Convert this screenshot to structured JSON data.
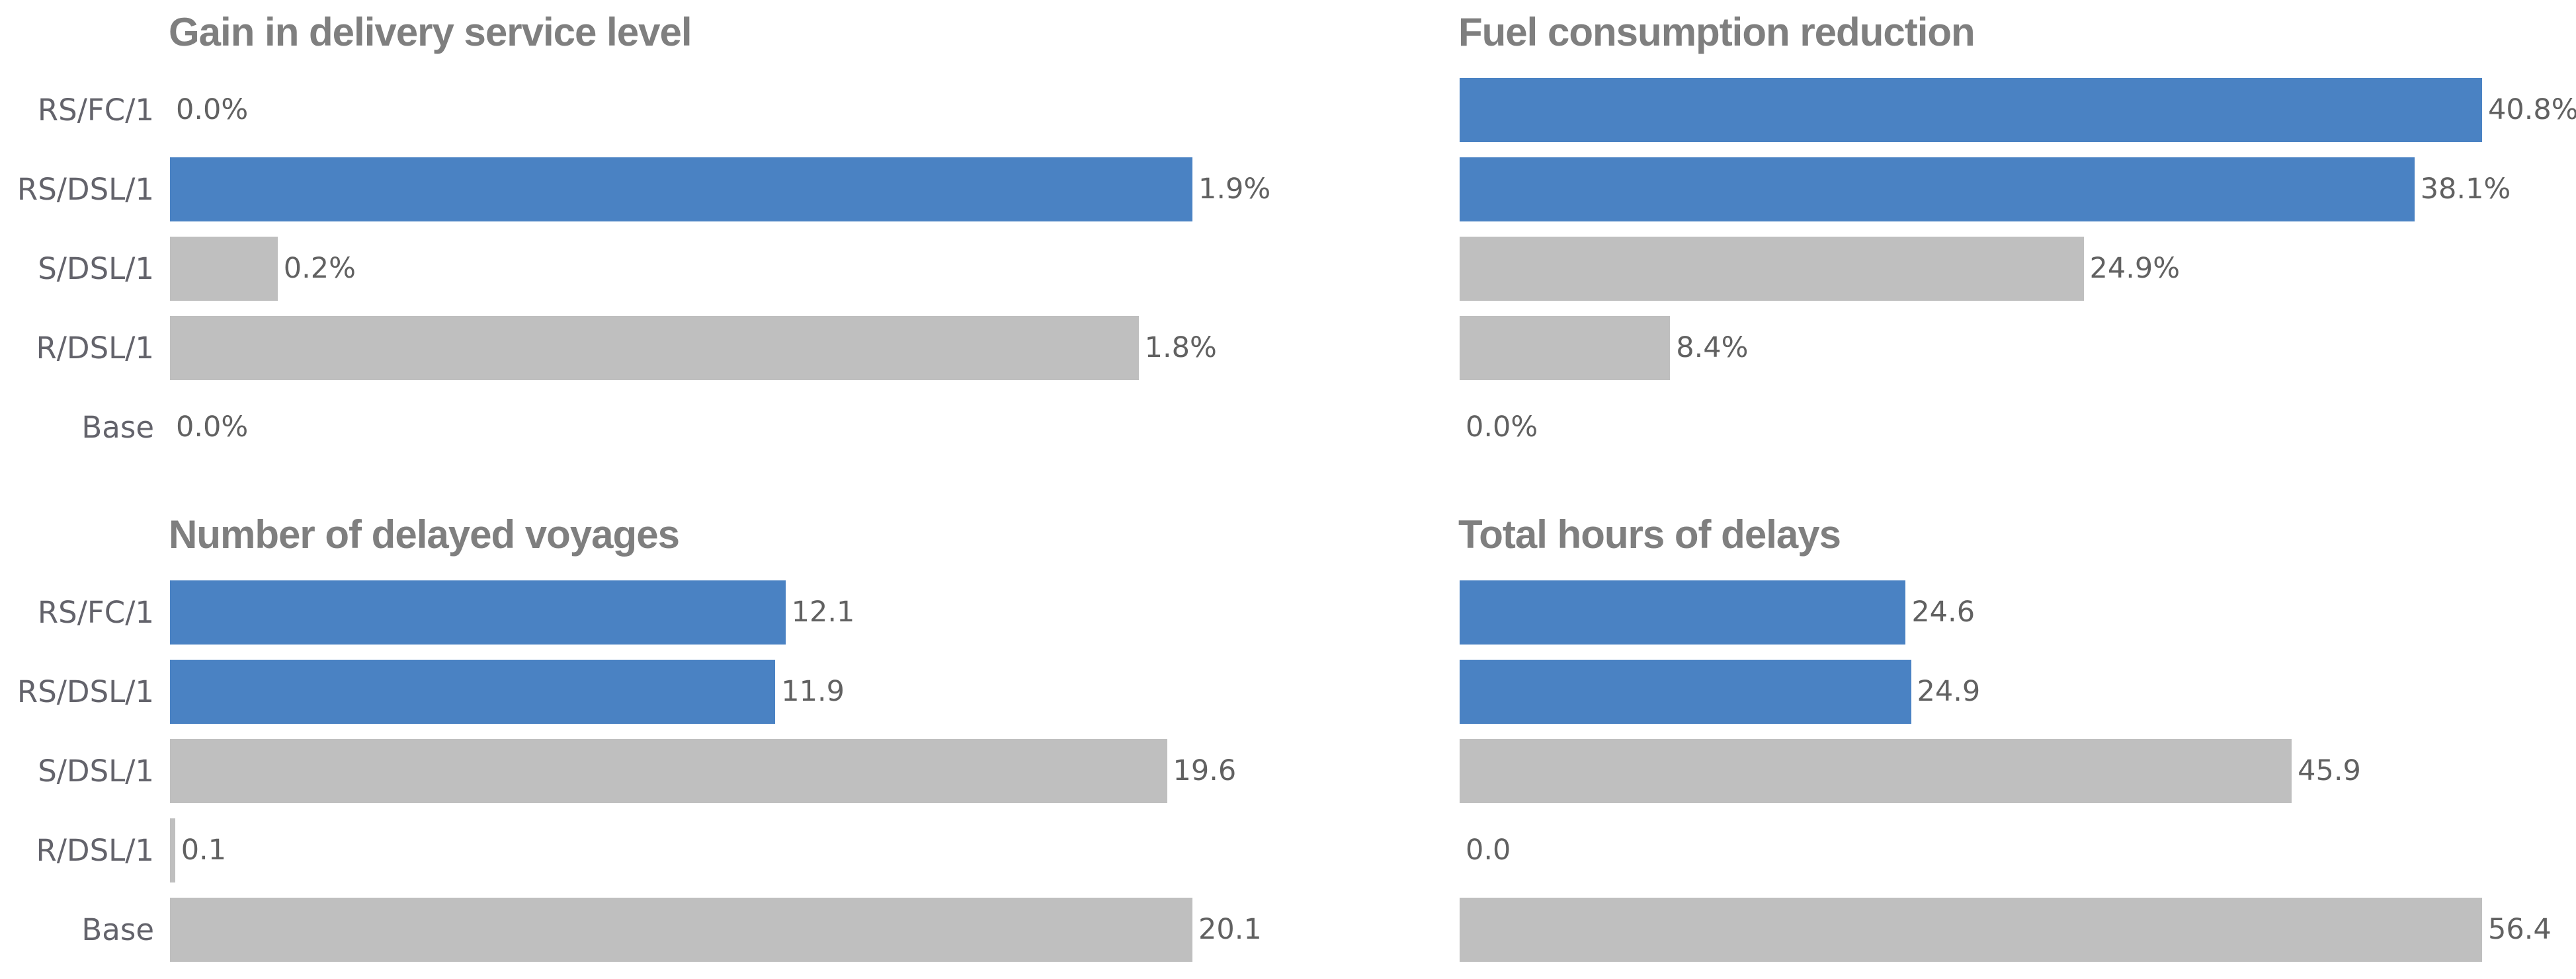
{
  "style": {
    "background": "#ffffff",
    "highlight_bar_color": "#4a82c3",
    "neutral_bar_color": "#bfbfbf",
    "title_text_color": "#7f7f7f",
    "category_text_color": "#63636b",
    "value_text_color": "#616161"
  },
  "chart_data": [
    {
      "type": "bar",
      "orientation": "horizontal",
      "title": "Gain in delivery service level",
      "categories": [
        "RS/FC/1",
        "RS/DSL/1",
        "S/DSL/1",
        "R/DSL/1",
        "Base"
      ],
      "values": [
        0.0,
        1.9,
        0.2,
        1.8,
        0.0
      ],
      "labels": [
        "0.0%",
        "1.9%",
        "0.2%",
        "1.8%",
        "0.0%"
      ],
      "colors": [
        "#4a82c3",
        "#4a82c3",
        "#bfbfbf",
        "#bfbfbf",
        "#bfbfbf"
      ],
      "xmax": 1.9,
      "unit": "%",
      "show_category_axis": true,
      "grid": false,
      "legend": false
    },
    {
      "type": "bar",
      "orientation": "horizontal",
      "title": "Fuel consumption reduction",
      "categories": [
        "RS/FC/1",
        "RS/DSL/1",
        "S/DSL/1",
        "R/DSL/1",
        "Base"
      ],
      "values": [
        40.8,
        38.1,
        24.9,
        8.4,
        0.0
      ],
      "labels": [
        "40.8%",
        "38.1%",
        "24.9%",
        "8.4%",
        "0.0%"
      ],
      "colors": [
        "#4a82c3",
        "#4a82c3",
        "#bfbfbf",
        "#bfbfbf",
        "#bfbfbf"
      ],
      "xmax": 40.8,
      "unit": "%",
      "show_category_axis": false,
      "grid": false,
      "legend": false
    },
    {
      "type": "bar",
      "orientation": "horizontal",
      "title": "Number of delayed voyages",
      "categories": [
        "RS/FC/1",
        "RS/DSL/1",
        "S/DSL/1",
        "R/DSL/1",
        "Base"
      ],
      "values": [
        12.1,
        11.9,
        19.6,
        0.1,
        20.1
      ],
      "labels": [
        "12.1",
        "11.9",
        "19.6",
        "0.1",
        "20.1"
      ],
      "colors": [
        "#4a82c3",
        "#4a82c3",
        "#bfbfbf",
        "#bfbfbf",
        "#bfbfbf"
      ],
      "xmax": 20.1,
      "unit": "",
      "show_category_axis": true,
      "grid": false,
      "legend": false
    },
    {
      "type": "bar",
      "orientation": "horizontal",
      "title": "Total hours of delays",
      "categories": [
        "RS/FC/1",
        "RS/DSL/1",
        "S/DSL/1",
        "R/DSL/1",
        "Base"
      ],
      "values": [
        24.6,
        24.9,
        45.9,
        0.0,
        56.4
      ],
      "labels": [
        "24.6",
        "24.9",
        "45.9",
        "0.0",
        "56.4"
      ],
      "colors": [
        "#4a82c3",
        "#4a82c3",
        "#bfbfbf",
        "#bfbfbf",
        "#bfbfbf"
      ],
      "xmax": 56.4,
      "unit": "",
      "show_category_axis": false,
      "grid": false,
      "legend": false
    }
  ]
}
